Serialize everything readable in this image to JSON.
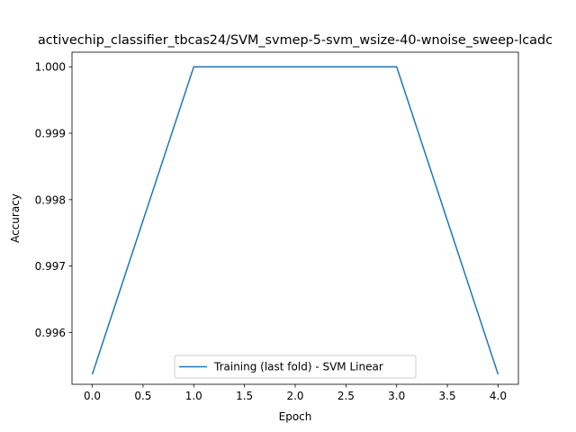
{
  "chart_data": {
    "type": "line",
    "title": "activechip_classifier_tbcas24/SVM_svmep-5-svm_wsize-40-wnoise_sweep-lcadc",
    "xlabel": "Epoch",
    "ylabel": "Accuracy",
    "xlim": [
      -0.2,
      4.2
    ],
    "ylim": [
      0.99522,
      1.00022
    ],
    "x_ticks": [
      0.0,
      0.5,
      1.0,
      1.5,
      2.0,
      2.5,
      3.0,
      3.5,
      4.0
    ],
    "x_tick_labels": [
      "0.0",
      "0.5",
      "1.0",
      "1.5",
      "2.0",
      "2.5",
      "3.0",
      "3.5",
      "4.0"
    ],
    "y_ticks": [
      0.996,
      0.997,
      0.998,
      0.999,
      1.0
    ],
    "y_tick_labels": [
      "0.996",
      "0.997",
      "0.998",
      "0.999",
      "1.000"
    ],
    "grid": false,
    "legend_position": "lower center",
    "series": [
      {
        "name": "Training (last fold) - SVM Linear",
        "color": "#1f77b4",
        "x": [
          0,
          1,
          2,
          3,
          4
        ],
        "y": [
          0.99537,
          1.0,
          1.0,
          1.0,
          0.99537
        ]
      }
    ]
  }
}
